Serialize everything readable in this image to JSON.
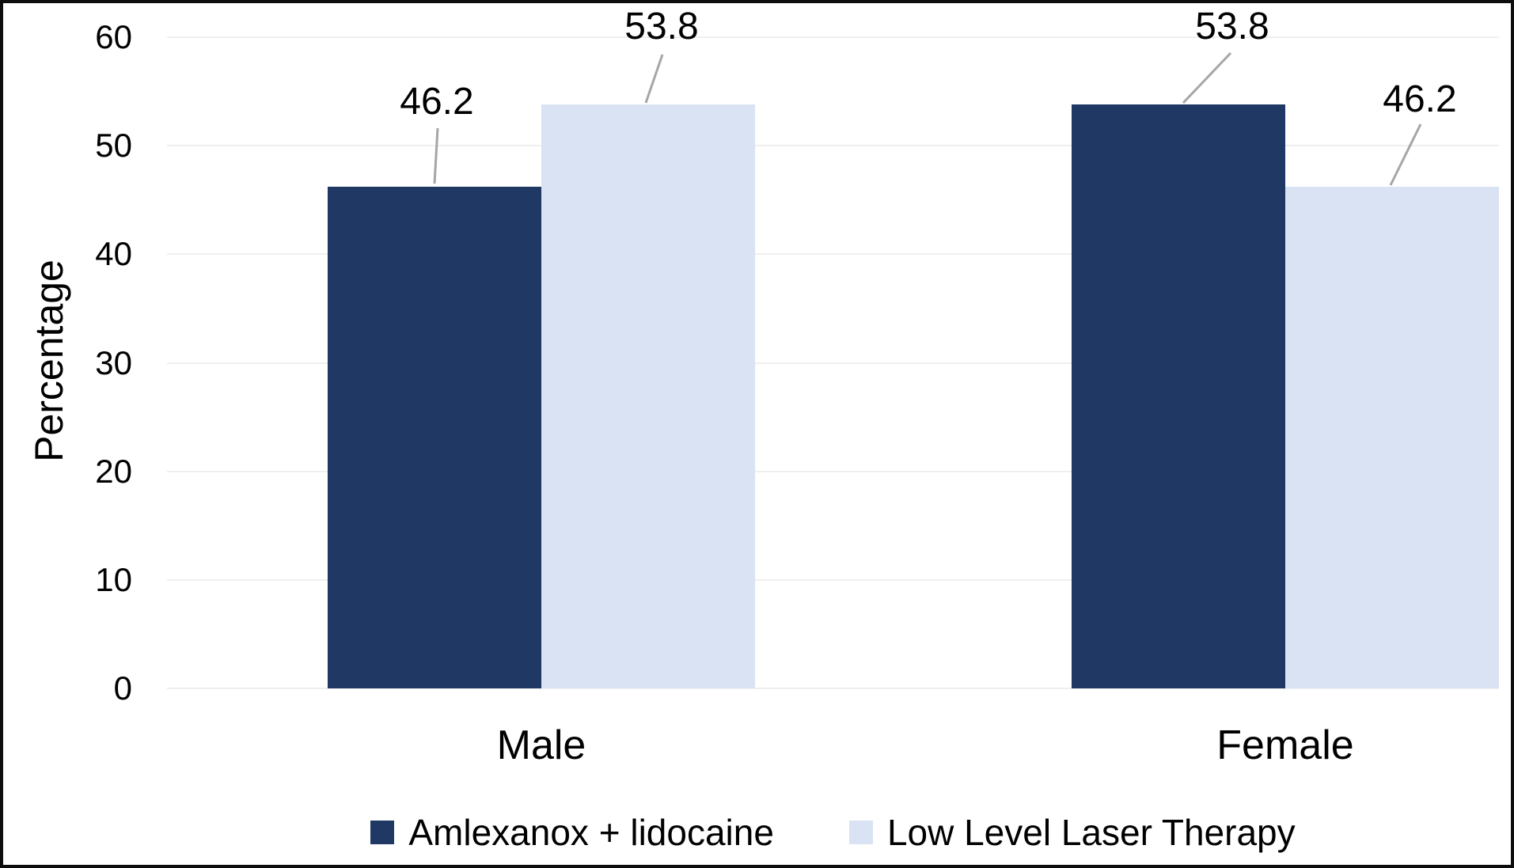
{
  "figure": {
    "background": "#ffffff",
    "border_color": "#0d0d0d"
  },
  "chart_data": {
    "type": "bar",
    "title": "",
    "ylabel": "Percentage",
    "ylim": [
      0,
      60
    ],
    "yticks": [
      0,
      10,
      20,
      30,
      40,
      50,
      60
    ],
    "grid": true,
    "gridline_color": "#efefef",
    "legend_position": "bottom",
    "leader_line_color": "#a6a6a6",
    "categories": [
      "Male",
      "Female"
    ],
    "series": [
      {
        "name": "Amlexanox + lidocaine",
        "color": "#1F3864",
        "values": [
          46.2,
          53.8
        ],
        "labels": [
          "46.2",
          "53.8"
        ]
      },
      {
        "name": "Low Level Laser Therapy",
        "color": "#DAE3F3",
        "values": [
          53.8,
          46.2
        ],
        "labels": [
          "53.8",
          "46.2"
        ]
      }
    ]
  }
}
